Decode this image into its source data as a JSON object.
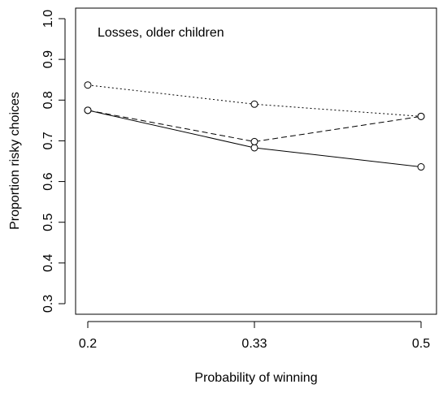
{
  "chart_data": {
    "type": "line",
    "title": "",
    "annotation": "Losses, older children",
    "xlabel": "Probability of winning",
    "ylabel": "Proportion risky choices",
    "categories": [
      "0.2",
      "0.33",
      "0.5"
    ],
    "ylim": [
      0.3,
      1.0
    ],
    "yticks": [
      "0.3",
      "0.4",
      "0.5",
      "0.6",
      "0.7",
      "0.8",
      "0.9",
      "1.0"
    ],
    "grid": false,
    "legend": "none",
    "series": [
      {
        "line_style": "solid",
        "values": [
          0.775,
          0.683,
          0.636
        ]
      },
      {
        "line_style": "dashed",
        "values": [
          0.775,
          0.698,
          0.76
        ]
      },
      {
        "line_style": "dotted",
        "values": [
          0.837,
          0.79,
          0.76
        ]
      }
    ]
  }
}
